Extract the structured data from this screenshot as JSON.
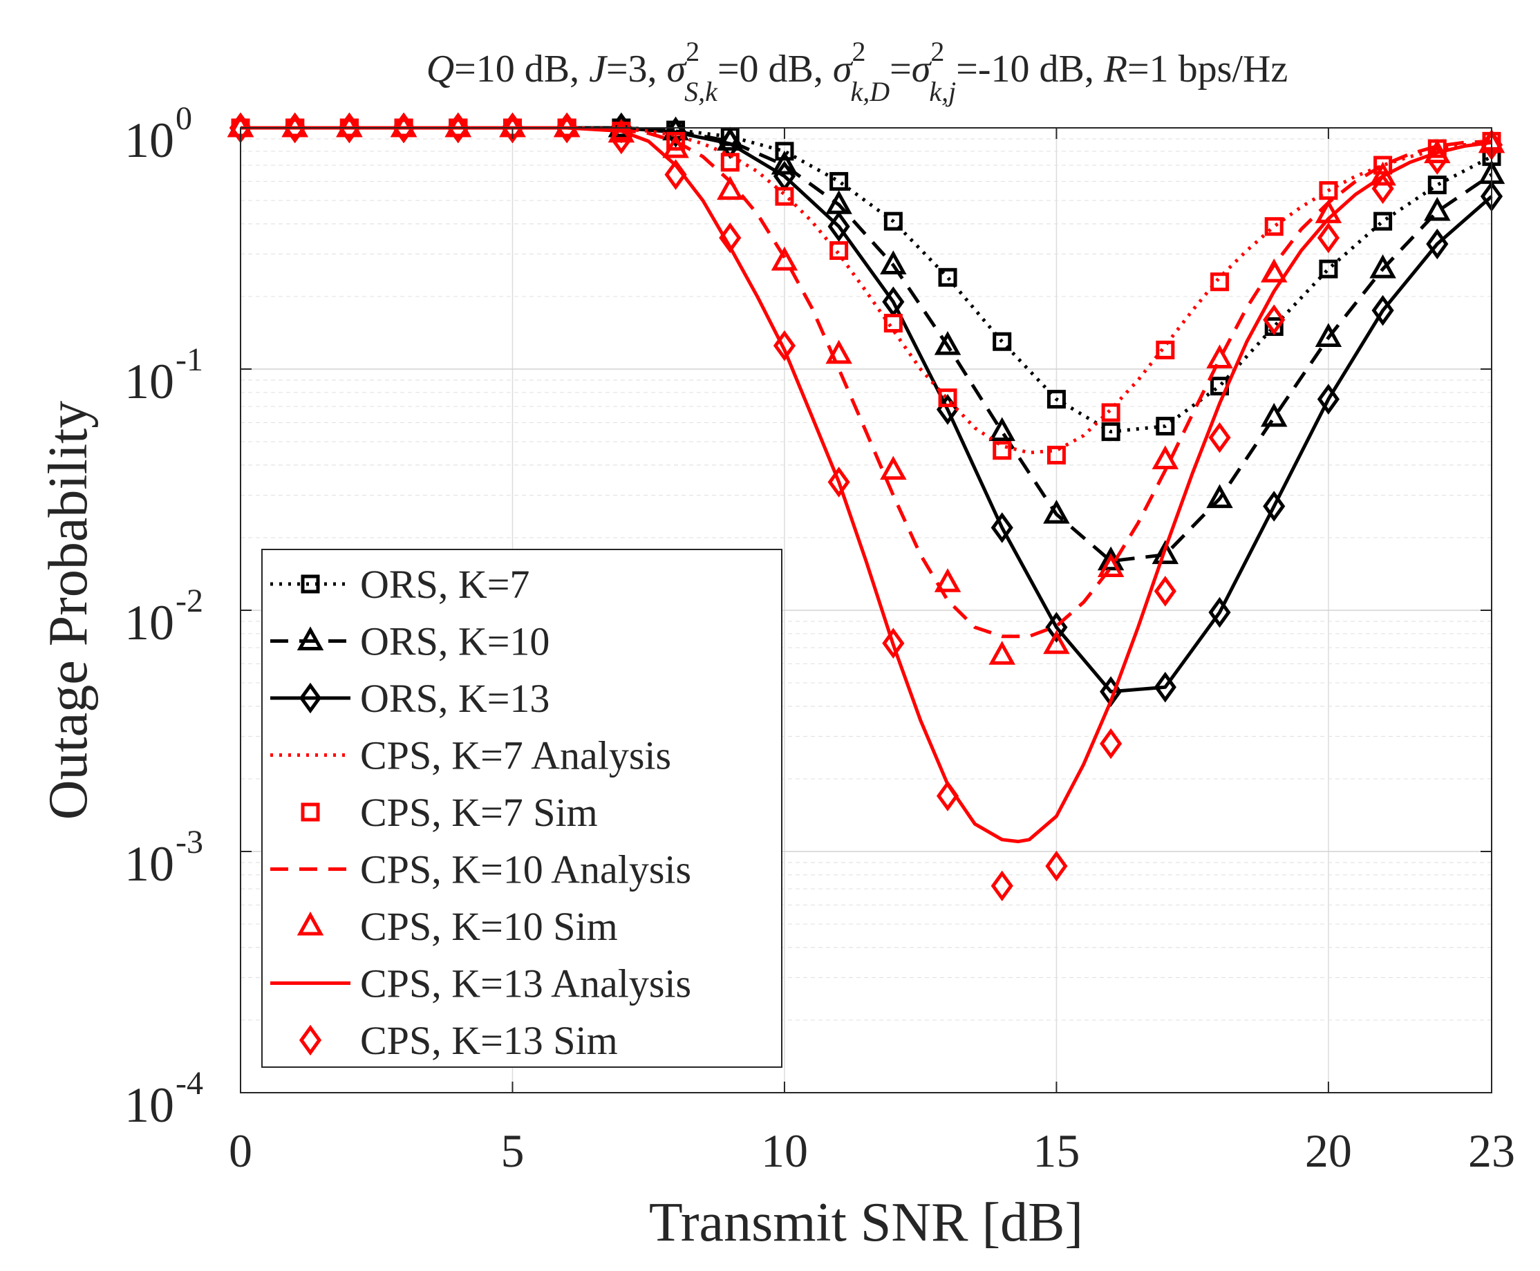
{
  "chart_data": {
    "type": "line",
    "title_parts": {
      "q_sym": "Q",
      "q_val": "=10 dB, ",
      "j_sym": "J",
      "j_val": "=3, ",
      "sigma": "σ",
      "sup2": "2",
      "sub_sk": "S,k",
      "sk_val": "=0 dB, ",
      "sub_kd": "k,D",
      "eq": "=",
      "sub_kj": "k,j",
      "kj_val": "=-10 dB, ",
      "r_sym": "R",
      "r_val": "=1 bps/Hz"
    },
    "xlabel": "Transmit SNR [dB]",
    "ylabel": "Outage Probability",
    "xlim": [
      0,
      23
    ],
    "ylim": [
      0.0001,
      1
    ],
    "yscale": "log",
    "grid": true,
    "minor_grid": true,
    "legend_position": "lower-left",
    "x_ticks": [
      {
        "value": 0,
        "label": "0"
      },
      {
        "value": 5,
        "label": "5"
      },
      {
        "value": 10,
        "label": "10"
      },
      {
        "value": 15,
        "label": "15"
      },
      {
        "value": 20,
        "label": "20"
      },
      {
        "value": 23,
        "label": "23"
      }
    ],
    "y_ticks": [
      {
        "value": 1,
        "base": "10",
        "exp": "0"
      },
      {
        "value": 0.1,
        "base": "10",
        "exp": "-1"
      },
      {
        "value": 0.01,
        "base": "10",
        "exp": "-2"
      },
      {
        "value": 0.001,
        "base": "10",
        "exp": "-3"
      },
      {
        "value": 0.0001,
        "base": "10",
        "exp": "-4"
      }
    ],
    "series": [
      {
        "name": "ORS, K=7",
        "color": "#000000",
        "line": "dotted",
        "marker": "square",
        "x": [
          0,
          1,
          2,
          3,
          4,
          5,
          6,
          7,
          8,
          9,
          10,
          11,
          12,
          13,
          14,
          15,
          16,
          17,
          18,
          19,
          20,
          21,
          22,
          23
        ],
        "y": [
          1,
          1,
          1,
          1,
          1,
          1,
          1,
          1,
          0.98,
          0.92,
          0.8,
          0.6,
          0.41,
          0.24,
          0.13,
          0.075,
          0.055,
          0.058,
          0.085,
          0.15,
          0.26,
          0.41,
          0.58,
          0.76
        ]
      },
      {
        "name": "ORS, K=10",
        "color": "#000000",
        "line": "dashed",
        "marker": "triangle",
        "x": [
          0,
          1,
          2,
          3,
          4,
          5,
          6,
          7,
          8,
          9,
          10,
          11,
          12,
          13,
          14,
          15,
          16,
          17,
          18,
          19,
          20,
          21,
          22,
          23
        ],
        "y": [
          1,
          1,
          1,
          1,
          1,
          1,
          1,
          1,
          0.97,
          0.88,
          0.7,
          0.48,
          0.27,
          0.125,
          0.055,
          0.025,
          0.016,
          0.017,
          0.029,
          0.063,
          0.135,
          0.26,
          0.45,
          0.64
        ]
      },
      {
        "name": "ORS, K=13",
        "color": "#000000",
        "line": "solid",
        "marker": "diamond",
        "x": [
          0,
          1,
          2,
          3,
          4,
          5,
          6,
          7,
          8,
          9,
          10,
          11,
          12,
          13,
          14,
          15,
          16,
          17,
          18,
          19,
          20,
          21,
          22,
          23
        ],
        "y": [
          1,
          1,
          1,
          1,
          1,
          1,
          1,
          1,
          0.96,
          0.86,
          0.63,
          0.39,
          0.19,
          0.068,
          0.022,
          0.0085,
          0.0046,
          0.0048,
          0.0098,
          0.027,
          0.075,
          0.175,
          0.33,
          0.52
        ]
      },
      {
        "name": "CPS, K=7 Analysis",
        "color": "#ff0000",
        "line": "dotted",
        "marker": "none",
        "x": [
          0,
          1,
          2,
          3,
          4,
          5,
          6,
          7,
          7.5,
          8,
          8.5,
          9,
          9.5,
          10,
          10.5,
          11,
          11.5,
          12,
          12.5,
          13,
          13.5,
          14,
          14.5,
          15,
          15.5,
          16,
          16.5,
          17,
          17.5,
          18,
          18.5,
          19,
          19.5,
          20,
          20.5,
          21,
          21.5,
          22,
          22.5,
          23
        ],
        "y": [
          1,
          1,
          1,
          1,
          1,
          1,
          1,
          0.99,
          0.97,
          0.93,
          0.86,
          0.77,
          0.66,
          0.53,
          0.41,
          0.3,
          0.21,
          0.145,
          0.1,
          0.075,
          0.057,
          0.048,
          0.045,
          0.046,
          0.053,
          0.068,
          0.09,
          0.125,
          0.175,
          0.24,
          0.31,
          0.39,
          0.47,
          0.55,
          0.63,
          0.7,
          0.76,
          0.81,
          0.85,
          0.87
        ]
      },
      {
        "name": "CPS, K=7 Sim",
        "color": "#ff0000",
        "line": "none",
        "marker": "square",
        "x": [
          0,
          1,
          2,
          3,
          4,
          5,
          6,
          7,
          8,
          9,
          10,
          11,
          12,
          13,
          14,
          15,
          16,
          17,
          18,
          19,
          20,
          21,
          22,
          23
        ],
        "y": [
          1,
          1,
          1,
          1,
          1,
          1,
          1,
          0.97,
          0.88,
          0.72,
          0.52,
          0.31,
          0.155,
          0.076,
          0.046,
          0.044,
          0.066,
          0.12,
          0.23,
          0.39,
          0.55,
          0.7,
          0.82,
          0.88
        ]
      },
      {
        "name": "CPS, K=10 Analysis",
        "color": "#ff0000",
        "line": "dashed",
        "marker": "none",
        "x": [
          0,
          1,
          2,
          3,
          4,
          5,
          6,
          7,
          7.5,
          8,
          8.5,
          9,
          9.5,
          10,
          10.5,
          11,
          11.5,
          12,
          12.5,
          13,
          13.5,
          14,
          14.5,
          15,
          15.5,
          16,
          16.5,
          17,
          17.5,
          18,
          18.5,
          19,
          19.5,
          20,
          20.5,
          21,
          21.5,
          22,
          22.5,
          23
        ],
        "y": [
          1,
          1,
          1,
          1,
          1,
          1,
          1,
          0.98,
          0.95,
          0.88,
          0.76,
          0.6,
          0.44,
          0.29,
          0.18,
          0.1,
          0.055,
          0.03,
          0.017,
          0.011,
          0.0085,
          0.0078,
          0.0078,
          0.0086,
          0.0108,
          0.015,
          0.023,
          0.038,
          0.065,
          0.11,
          0.18,
          0.27,
          0.38,
          0.49,
          0.6,
          0.7,
          0.78,
          0.84,
          0.87,
          0.88
        ]
      },
      {
        "name": "CPS, K=10 Sim",
        "color": "#ff0000",
        "line": "none",
        "marker": "triangle",
        "x": [
          0,
          1,
          2,
          3,
          4,
          5,
          6,
          7,
          8,
          9,
          10,
          11,
          12,
          13,
          14,
          15,
          16,
          17,
          18,
          19,
          20,
          21,
          22,
          23
        ],
        "y": [
          1,
          1,
          1,
          1,
          1,
          1,
          1,
          0.95,
          0.82,
          0.55,
          0.28,
          0.115,
          0.038,
          0.013,
          0.0065,
          0.0072,
          0.015,
          0.042,
          0.11,
          0.25,
          0.44,
          0.63,
          0.78,
          0.86
        ]
      },
      {
        "name": "CPS, K=13 Analysis",
        "color": "#ff0000",
        "line": "solid",
        "marker": "none",
        "x": [
          0,
          1,
          2,
          3,
          4,
          5,
          6,
          7,
          7.5,
          8,
          8.5,
          9,
          9.5,
          10,
          10.5,
          11,
          11.5,
          12,
          12.5,
          13,
          13.5,
          14,
          14.3,
          14.5,
          15,
          15.5,
          16,
          16.5,
          17,
          17.5,
          18,
          18.5,
          19,
          19.5,
          20,
          20.5,
          21,
          21.5,
          22,
          22.5,
          23
        ],
        "y": [
          1,
          1,
          1,
          1,
          1,
          1,
          1,
          0.97,
          0.88,
          0.7,
          0.5,
          0.32,
          0.2,
          0.12,
          0.064,
          0.034,
          0.016,
          0.0072,
          0.0035,
          0.0019,
          0.0013,
          0.00112,
          0.0011,
          0.00112,
          0.0014,
          0.0023,
          0.0042,
          0.0085,
          0.018,
          0.037,
          0.072,
          0.13,
          0.21,
          0.31,
          0.42,
          0.53,
          0.63,
          0.72,
          0.79,
          0.84,
          0.87
        ]
      },
      {
        "name": "CPS, K=13 Sim",
        "color": "#ff0000",
        "line": "none",
        "marker": "diamond",
        "x": [
          0,
          1,
          2,
          3,
          4,
          5,
          6,
          7,
          8,
          9,
          10,
          11,
          12,
          13,
          14,
          15,
          16,
          17,
          18,
          19,
          20,
          21,
          22,
          23
        ],
        "y": [
          1,
          1,
          1,
          1,
          1,
          1,
          1,
          0.9,
          0.64,
          0.35,
          0.125,
          0.034,
          0.0073,
          0.0017,
          0.00072,
          0.00087,
          0.0028,
          0.012,
          0.052,
          0.16,
          0.35,
          0.56,
          0.74,
          0.85
        ]
      }
    ]
  }
}
